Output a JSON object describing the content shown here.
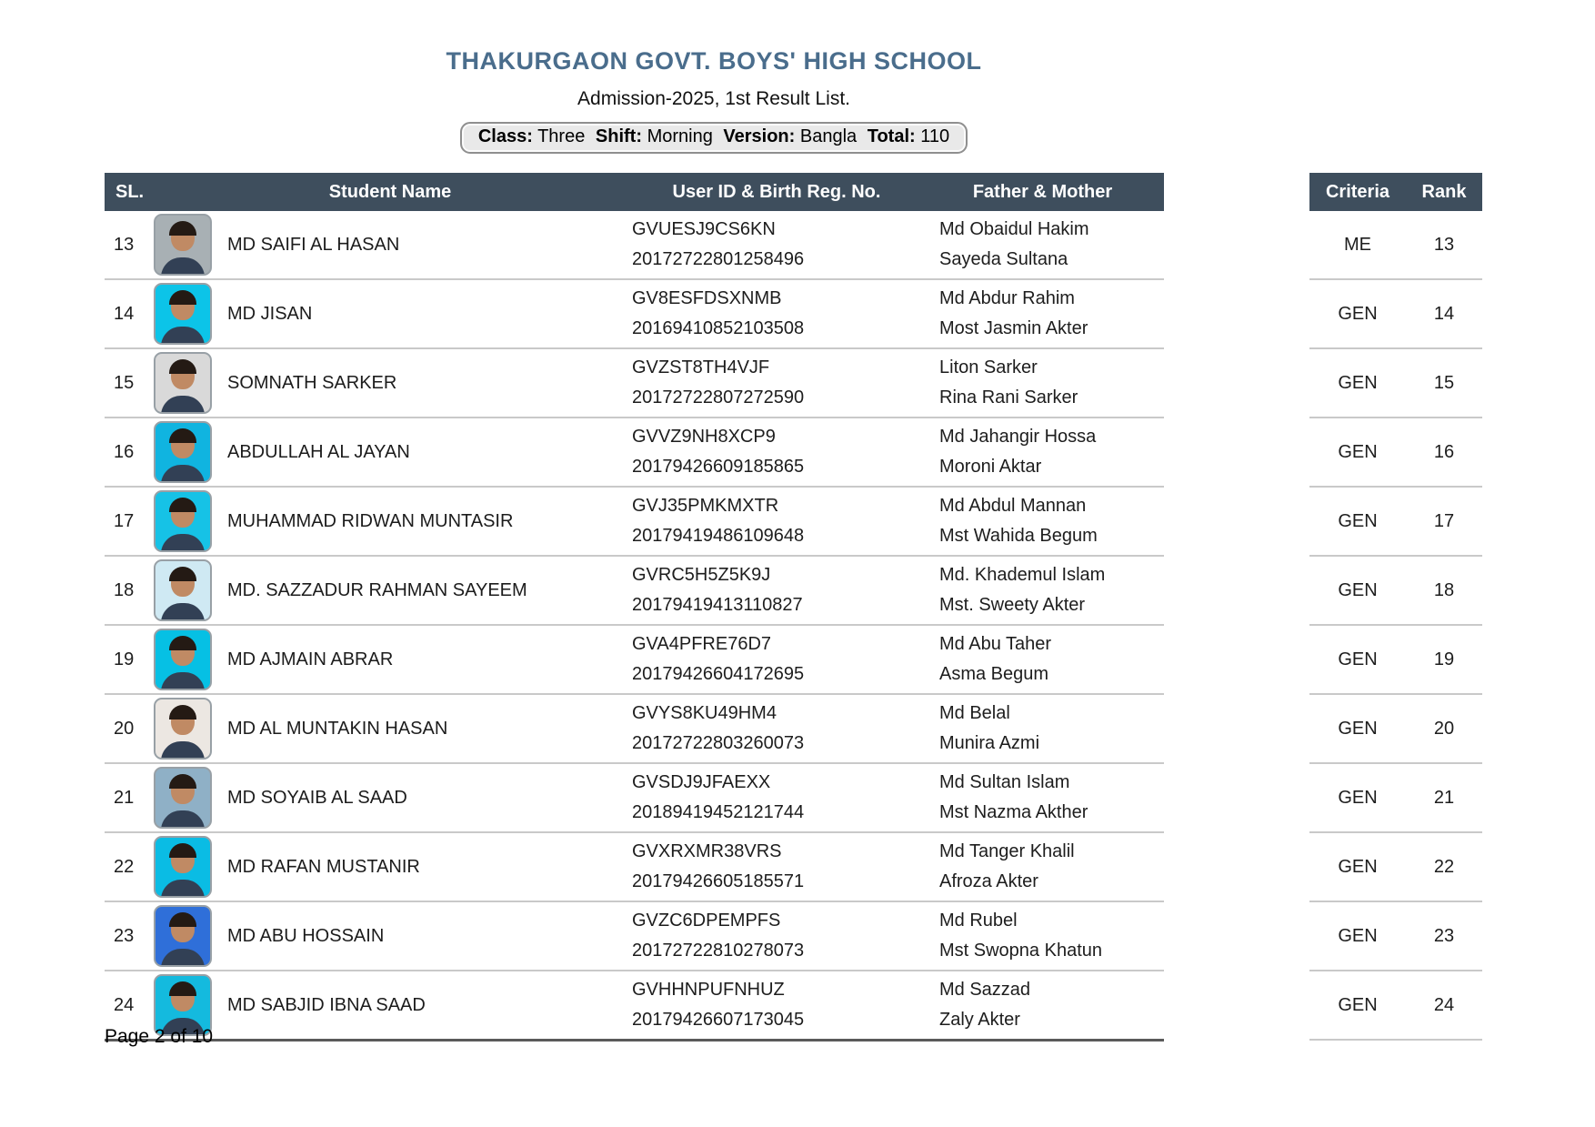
{
  "header": {
    "school_name": "THAKURGAON GOVT. BOYS' HIGH SCHOOL",
    "subtitle": "Admission-2025, 1st Result List.",
    "class_label": "Class:",
    "class_value": "Three",
    "shift_label": "Shift:",
    "shift_value": "Morning",
    "version_label": "Version:",
    "version_value": "Bangla",
    "total_label": "Total:",
    "total_value": "110"
  },
  "table": {
    "columns": {
      "sl": "SL.",
      "name": "Student Name",
      "user_id": "User ID & Birth Reg. No.",
      "parents": "Father & Mother"
    },
    "side_columns": {
      "criteria": "Criteria",
      "rank": "Rank"
    }
  },
  "students": [
    {
      "sl": "13",
      "name": "MD SAIFI AL HASAN",
      "user_id": "GVUESJ9CS6KN",
      "birth_reg_no": "20172722801258496",
      "father": "Md Obaidul Hakim",
      "mother": "Sayeda Sultana",
      "criteria": "ME",
      "rank": "13",
      "photo_bg": "#a8b0b4"
    },
    {
      "sl": "14",
      "name": "MD JISAN",
      "user_id": "GV8ESFDSXNMB",
      "birth_reg_no": "20169410852103508",
      "father": "Md Abdur Rahim",
      "mother": "Most Jasmin Akter",
      "criteria": "GEN",
      "rank": "14",
      "photo_bg": "#0cc4e8"
    },
    {
      "sl": "15",
      "name": "SOMNATH SARKER",
      "user_id": "GVZST8TH4VJF",
      "birth_reg_no": "20172722807272590",
      "father": "Liton Sarker",
      "mother": "Rina Rani Sarker",
      "criteria": "GEN",
      "rank": "15",
      "photo_bg": "#d9d9d9"
    },
    {
      "sl": "16",
      "name": "ABDULLAH AL JAYAN",
      "user_id": "GVVZ9NH8XCP9",
      "birth_reg_no": "20179426609185865",
      "father": "Md Jahangir Hossa",
      "mother": "Moroni Aktar",
      "criteria": "GEN",
      "rank": "16",
      "photo_bg": "#10b4e0"
    },
    {
      "sl": "17",
      "name": "MUHAMMAD RIDWAN MUNTASIR",
      "user_id": "GVJ35PMKMXTR",
      "birth_reg_no": "20179419486109648",
      "father": "Md Abdul Mannan",
      "mother": "Mst Wahida Begum",
      "criteria": "GEN",
      "rank": "17",
      "photo_bg": "#16c2e6"
    },
    {
      "sl": "18",
      "name": "MD. SAZZADUR RAHMAN SAYEEM",
      "user_id": "GVRC5H5Z5K9J",
      "birth_reg_no": "20179419413110827",
      "father": "Md. Khademul Islam",
      "mother": "Mst. Sweety Akter",
      "criteria": "GEN",
      "rank": "18",
      "photo_bg": "#cfe9f3"
    },
    {
      "sl": "19",
      "name": "MD AJMAIN ABRAR",
      "user_id": "GVA4PFRE76D7",
      "birth_reg_no": "20179426604172695",
      "father": "Md Abu Taher",
      "mother": "Asma Begum",
      "criteria": "GEN",
      "rank": "19",
      "photo_bg": "#06c0e4"
    },
    {
      "sl": "20",
      "name": "MD AL MUNTAKIN HASAN",
      "user_id": "GVYS8KU49HM4",
      "birth_reg_no": "20172722803260073",
      "father": "Md Belal",
      "mother": "Munira Azmi",
      "criteria": "GEN",
      "rank": "20",
      "photo_bg": "#ece7e2"
    },
    {
      "sl": "21",
      "name": "MD SOYAIB AL SAAD",
      "user_id": "GVSDJ9JFAEXX",
      "birth_reg_no": "20189419452121744",
      "father": "Md Sultan Islam",
      "mother": "Mst Nazma Akther",
      "criteria": "GEN",
      "rank": "21",
      "photo_bg": "#8fb0c6"
    },
    {
      "sl": "22",
      "name": "MD RAFAN MUSTANIR",
      "user_id": "GVXRXMR38VRS",
      "birth_reg_no": "20179426605185571",
      "father": "Md Tanger Khalil",
      "mother": "Afroza Akter",
      "criteria": "GEN",
      "rank": "22",
      "photo_bg": "#0abce4"
    },
    {
      "sl": "23",
      "name": "MD ABU HOSSAIN",
      "user_id": "GVZC6DPEMPFS",
      "birth_reg_no": "20172722810278073",
      "father": "Md Rubel",
      "mother": "Mst Swopna Khatun",
      "criteria": "GEN",
      "rank": "23",
      "photo_bg": "#2f6fd9"
    },
    {
      "sl": "24",
      "name": "MD SABJID IBNA SAAD",
      "user_id": "GVHHNPUFNHUZ",
      "birth_reg_no": "20179426607173045",
      "father": "Md Sazzad",
      "mother": "Zaly Akter",
      "criteria": "GEN",
      "rank": "24",
      "photo_bg": "#14bade"
    }
  ],
  "footer": {
    "page_text": "Page 2 of 10"
  },
  "colors": {
    "title": "#4a6d8c",
    "header_bar": "#3e4e5d",
    "header_text": "#ffffff",
    "class_box_bg": "#e9e9e9",
    "class_box_border": "#8f8f8f",
    "row_divider": "#c9c9c9",
    "table_bottom_border": "#5a5a5a"
  }
}
